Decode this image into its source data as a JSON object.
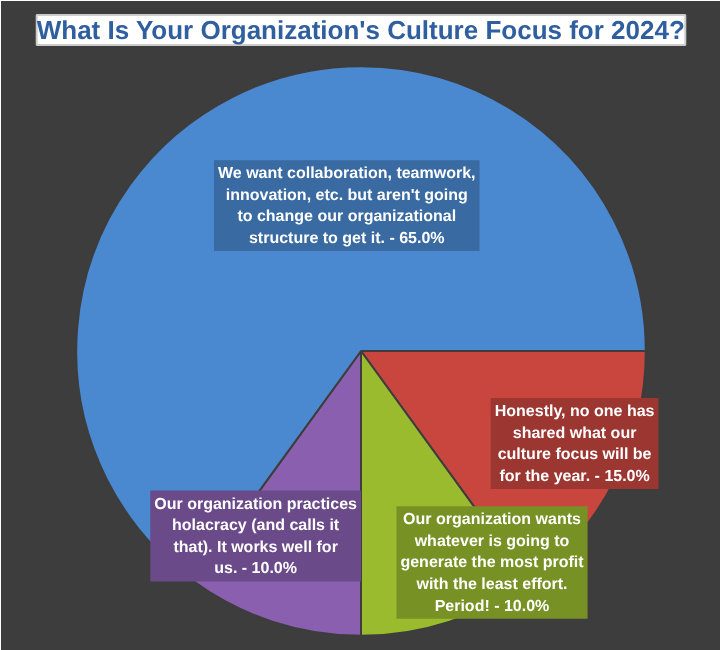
{
  "chart_data": {
    "type": "pie",
    "title": "What Is Your Organization's Culture Focus for 2024?",
    "categories": [
      "Honestly, no one has shared what our culture focus will be for the year. -",
      "Our organization wants whatever is going to generate the most profit with the least effort. Period! -",
      "Our organization practices holacracy (and calls it that). It works well for us. -",
      "We want collaboration, teamwork, innovation, etc. but aren't going to change our organizational structure to get it. -"
    ],
    "values": [
      15,
      10,
      10,
      65
    ],
    "value_labels": [
      "15.0%",
      "10.0%",
      "10.0%",
      "65.0%"
    ],
    "colors": [
      "#c9463f",
      "#9bbb2f",
      "#8a5fb0",
      "#4a88d0"
    ]
  }
}
